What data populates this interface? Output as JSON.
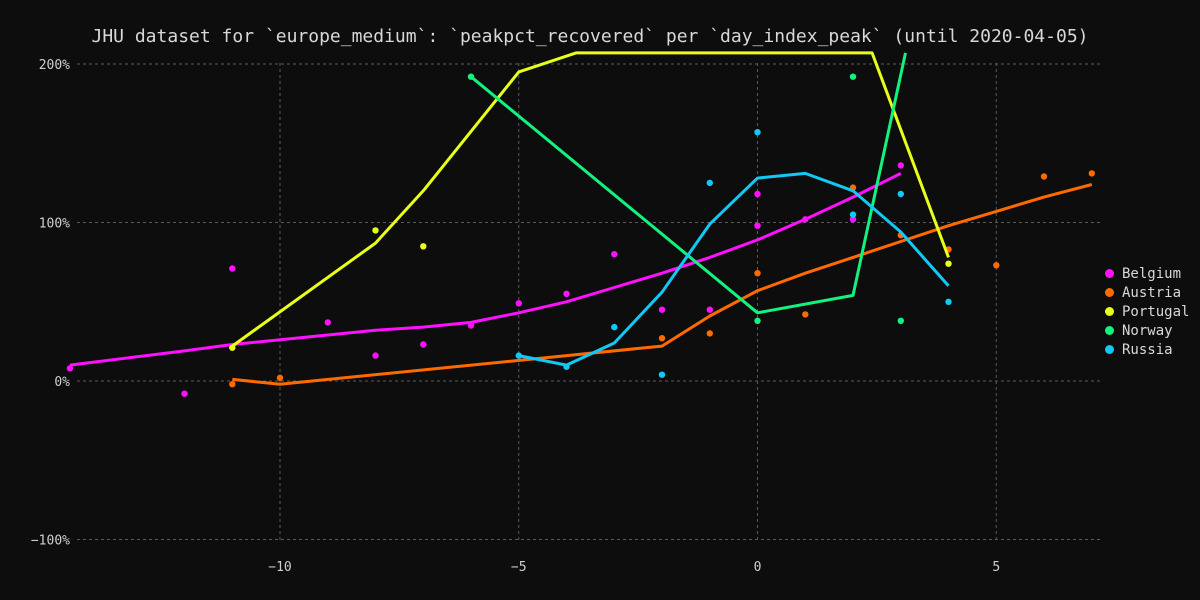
{
  "chart_data": {
    "type": "line",
    "title": "JHU dataset for `europe_medium`: `peakpct_recovered` per `day_index_peak` (until 2020-04-05)",
    "xlabel": "",
    "ylabel": "",
    "xlim": [
      -14.5,
      7.2
    ],
    "ylim": [
      -1.0,
      2.0
    ],
    "x_ticks": [
      -10,
      -5,
      0,
      5
    ],
    "y_ticks": [
      -1,
      0,
      1,
      2
    ],
    "x_tick_labels": [
      "−10",
      "−5",
      "0",
      "5"
    ],
    "y_tick_labels": [
      "−100%",
      "0%",
      "100%",
      "200%"
    ],
    "grid": true,
    "legend_position": "right",
    "series": [
      {
        "name": "Belgium",
        "color": "#ff10ff",
        "points": [
          [
            -14.4,
            0.08
          ],
          [
            -12,
            -0.08
          ],
          [
            -11,
            0.71
          ],
          [
            -9,
            0.37
          ],
          [
            -8,
            0.16
          ],
          [
            -7,
            0.23
          ],
          [
            -6,
            0.35
          ],
          [
            -5,
            0.49
          ],
          [
            -4,
            0.55
          ],
          [
            -3,
            0.8
          ],
          [
            -2,
            0.45
          ],
          [
            -1,
            0.45
          ],
          [
            0,
            0.98
          ],
          [
            0,
            1.18
          ],
          [
            1,
            1.02
          ],
          [
            2,
            1.02
          ],
          [
            3,
            1.36
          ]
        ],
        "line": [
          [
            -14.4,
            0.1
          ],
          [
            -12,
            0.19
          ],
          [
            -11,
            0.23
          ],
          [
            -9,
            0.29
          ],
          [
            -8,
            0.32
          ],
          [
            -7,
            0.34
          ],
          [
            -6,
            0.37
          ],
          [
            -5,
            0.43
          ],
          [
            -4,
            0.5
          ],
          [
            -3,
            0.59
          ],
          [
            -2,
            0.68
          ],
          [
            -1,
            0.78
          ],
          [
            0,
            0.89
          ],
          [
            1,
            1.02
          ],
          [
            2,
            1.16
          ],
          [
            3,
            1.31
          ]
        ]
      },
      {
        "name": "Austria",
        "color": "#ff6a00",
        "points": [
          [
            -11,
            -0.02
          ],
          [
            -10,
            0.02
          ],
          [
            -2,
            0.27
          ],
          [
            -1,
            0.3
          ],
          [
            0,
            0.68
          ],
          [
            1,
            0.42
          ],
          [
            2,
            1.22
          ],
          [
            3,
            0.92
          ],
          [
            4,
            0.83
          ],
          [
            5,
            0.73
          ],
          [
            6,
            1.29
          ],
          [
            7,
            1.31
          ]
        ],
        "line": [
          [
            -11,
            0.01
          ],
          [
            -10,
            -0.02
          ],
          [
            -2,
            0.22
          ],
          [
            -1,
            0.41
          ],
          [
            0,
            0.57
          ],
          [
            1,
            0.68
          ],
          [
            2,
            0.78
          ],
          [
            3,
            0.88
          ],
          [
            4,
            0.98
          ],
          [
            5,
            1.07
          ],
          [
            6,
            1.16
          ],
          [
            7,
            1.24
          ]
        ]
      },
      {
        "name": "Portugal",
        "color": "#e8ff1a",
        "points": [
          [
            -11,
            0.21
          ],
          [
            -8,
            0.95
          ],
          [
            -7,
            0.85
          ],
          [
            4,
            0.74
          ]
        ],
        "line": [
          [
            -11,
            0.22
          ],
          [
            -8,
            0.87
          ],
          [
            -7,
            1.2
          ],
          [
            -5,
            1.95
          ],
          [
            -3.8,
            2.07
          ],
          [
            2.4,
            2.07
          ],
          [
            4,
            0.78
          ]
        ]
      },
      {
        "name": "Norway",
        "color": "#13f27f",
        "points": [
          [
            -6,
            1.92
          ],
          [
            0,
            0.38
          ],
          [
            2,
            1.92
          ],
          [
            3,
            0.38
          ]
        ],
        "line": [
          [
            -6,
            1.92
          ],
          [
            0,
            0.43
          ],
          [
            2,
            0.54
          ],
          [
            3.1,
            2.07
          ]
        ]
      },
      {
        "name": "Russia",
        "color": "#12c8f5",
        "points": [
          [
            -5,
            0.16
          ],
          [
            -4,
            0.09
          ],
          [
            -3,
            0.34
          ],
          [
            -2,
            0.04
          ],
          [
            -1,
            1.25
          ],
          [
            0,
            1.57
          ],
          [
            2,
            1.05
          ],
          [
            3,
            1.18
          ],
          [
            4,
            0.5
          ]
        ],
        "line": [
          [
            -5,
            0.16
          ],
          [
            -4,
            0.1
          ],
          [
            -3,
            0.24
          ],
          [
            -2,
            0.56
          ],
          [
            -1,
            0.99
          ],
          [
            0,
            1.28
          ],
          [
            1,
            1.31
          ],
          [
            2,
            1.2
          ],
          [
            3,
            0.94
          ],
          [
            4,
            0.6
          ]
        ]
      }
    ]
  }
}
